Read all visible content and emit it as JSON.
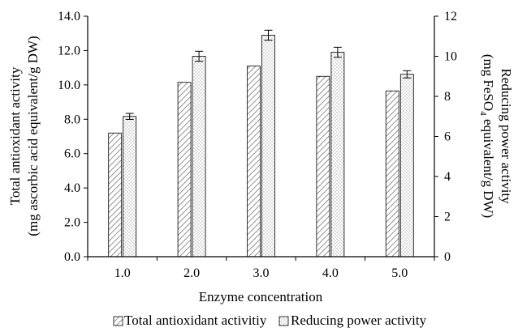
{
  "chart_data": {
    "type": "bar",
    "xlabel": "Enzyme concentration",
    "categories": [
      "1.0",
      "2.0",
      "3.0",
      "4.0",
      "5.0"
    ],
    "y_left": {
      "label_line1": "Total antioxidant activity",
      "label_line2": "(mg ascorbic acid equivalent/g DW)",
      "ylim": [
        0,
        14
      ],
      "ticks": [
        "0.0",
        "2.0",
        "4.0",
        "6.0",
        "8.0",
        "10.0",
        "12.0",
        "14.0"
      ]
    },
    "y_right": {
      "label_line1": "Reducing power activity",
      "label_line2_pre": "(mg FeSO",
      "label_line2_sub": "4",
      "label_line2_post": " equivalent/g DW)",
      "ylim": [
        0,
        12
      ],
      "ticks": [
        "0",
        "2",
        "4",
        "6",
        "8",
        "10",
        "12"
      ]
    },
    "series": [
      {
        "name": "Total antioxidant activitiy",
        "axis": "left",
        "pattern": "hatch",
        "values": [
          7.2,
          10.15,
          11.1,
          10.5,
          9.65
        ]
      },
      {
        "name": "Reducing power activity",
        "axis": "right",
        "pattern": "dots",
        "values": [
          7.0,
          10.0,
          11.05,
          10.2,
          9.1
        ],
        "errors": [
          0.15,
          0.25,
          0.25,
          0.25,
          0.18
        ]
      }
    ],
    "grid": false,
    "legend_position": "bottom"
  }
}
